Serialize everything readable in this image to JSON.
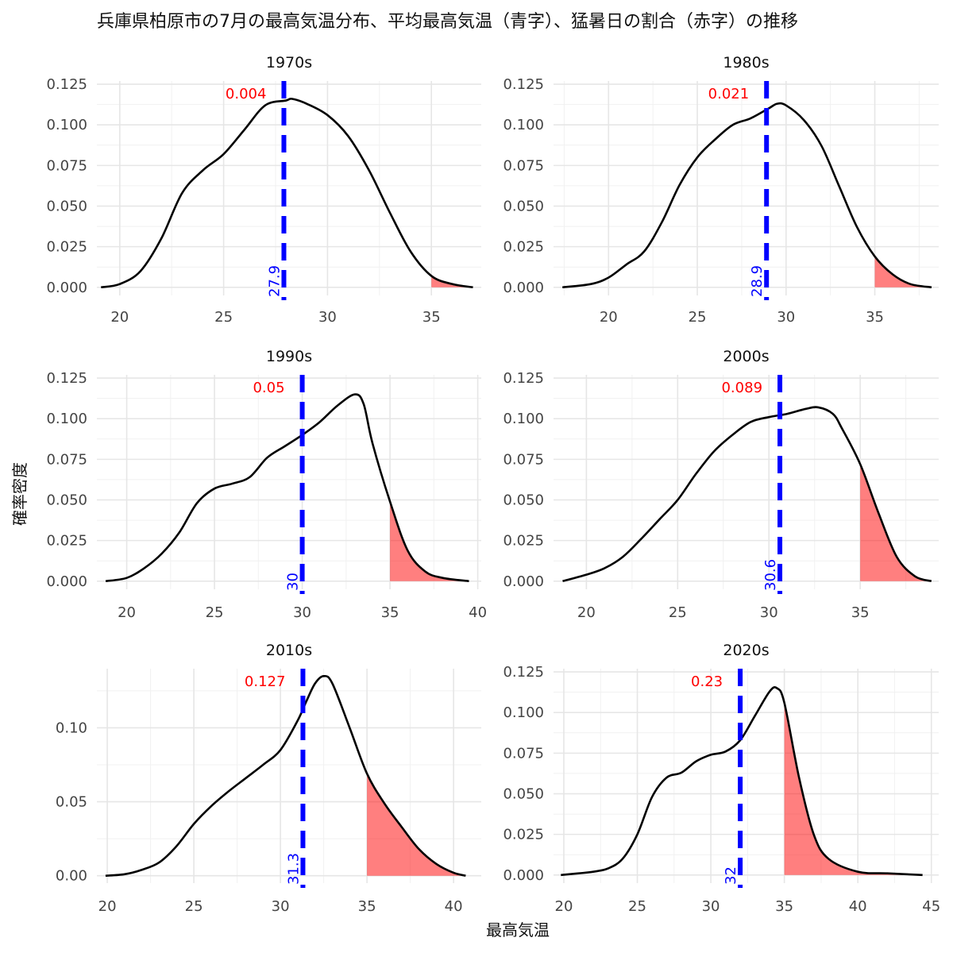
{
  "chart_data": {
    "type": "area",
    "title": "兵庫県柏原市の7月の最高気温分布、平均最高気温（青字）、猛暑日の割合（赤字）の推移",
    "xlabel": "最高気温",
    "ylabel": "確率密度",
    "threshold": 35,
    "colors": {
      "mean_line": "#0000ff",
      "share_text": "#ff0000",
      "tail_fill": "#ff0000",
      "curve": "#000000"
    },
    "panels": [
      {
        "label": "1970s",
        "mean": 27.9,
        "mean_label": "27.9",
        "share_label": "0.004",
        "xlim": [
          18.9,
          37.4
        ],
        "ylim": [
          -0.005,
          0.127
        ],
        "xticks": [
          20,
          25,
          30,
          35
        ],
        "yticks": [
          0,
          0.025,
          0.05,
          0.075,
          0.1,
          0.125
        ],
        "ytick_labels": [
          "0.000",
          "0.025",
          "0.050",
          "0.075",
          "0.100",
          "0.125"
        ],
        "x": [
          19.1,
          20.0,
          21.0,
          22.0,
          23.0,
          24.0,
          25.0,
          26.0,
          27.0,
          28.0,
          28.3,
          29.0,
          30.0,
          31.0,
          32.0,
          33.0,
          34.0,
          35.0,
          36.0,
          37.0
        ],
        "y": [
          0.0,
          0.002,
          0.01,
          0.03,
          0.058,
          0.072,
          0.082,
          0.097,
          0.112,
          0.115,
          0.116,
          0.113,
          0.106,
          0.093,
          0.072,
          0.046,
          0.022,
          0.007,
          0.002,
          0.0
        ]
      },
      {
        "label": "1980s",
        "mean": 28.9,
        "mean_label": "28.9",
        "share_label": "0.021",
        "xlim": [
          16.9,
          38.6
        ],
        "ylim": [
          -0.005,
          0.127
        ],
        "xticks": [
          20,
          25,
          30,
          35
        ],
        "yticks": [
          0,
          0.025,
          0.05,
          0.075,
          0.1,
          0.125
        ],
        "ytick_labels": [
          "0.000",
          "0.025",
          "0.050",
          "0.075",
          "0.100",
          "0.125"
        ],
        "x": [
          17.4,
          19.0,
          20.0,
          21.0,
          22.0,
          23.0,
          24.0,
          25.0,
          26.0,
          27.0,
          28.0,
          29.0,
          29.5,
          30.0,
          31.0,
          32.0,
          33.0,
          34.0,
          35.0,
          36.0,
          37.0,
          38.2
        ],
        "y": [
          0.0,
          0.002,
          0.006,
          0.014,
          0.022,
          0.04,
          0.063,
          0.08,
          0.091,
          0.1,
          0.104,
          0.11,
          0.113,
          0.112,
          0.103,
          0.087,
          0.062,
          0.037,
          0.019,
          0.008,
          0.002,
          0.0
        ]
      },
      {
        "label": "1990s",
        "mean": 30,
        "mean_label": "30",
        "share_label": "0.05",
        "xlim": [
          18.3,
          40.2
        ],
        "ylim": [
          -0.005,
          0.127
        ],
        "xticks": [
          20,
          25,
          30,
          35,
          40
        ],
        "yticks": [
          0,
          0.025,
          0.05,
          0.075,
          0.1,
          0.125
        ],
        "ytick_labels": [
          "0.000",
          "0.025",
          "0.050",
          "0.075",
          "0.100",
          "0.125"
        ],
        "x": [
          18.8,
          20.0,
          21.0,
          22.0,
          23.0,
          24.0,
          25.0,
          26.0,
          27.0,
          28.0,
          29.0,
          30.0,
          31.0,
          32.0,
          33.0,
          33.5,
          34.0,
          35.0,
          36.0,
          37.0,
          38.0,
          39.5
        ],
        "y": [
          0.0,
          0.002,
          0.008,
          0.017,
          0.03,
          0.048,
          0.057,
          0.06,
          0.064,
          0.076,
          0.083,
          0.09,
          0.098,
          0.108,
          0.115,
          0.109,
          0.085,
          0.049,
          0.019,
          0.006,
          0.002,
          0.0
        ]
      },
      {
        "label": "2000s",
        "mean": 30.6,
        "mean_label": "30.6",
        "share_label": "0.089",
        "xlim": [
          18.2,
          39.3
        ],
        "ylim": [
          -0.005,
          0.127
        ],
        "xticks": [
          20,
          25,
          30,
          35
        ],
        "yticks": [
          0,
          0.025,
          0.05,
          0.075,
          0.1,
          0.125
        ],
        "ytick_labels": [
          "0.000",
          "0.025",
          "0.050",
          "0.075",
          "0.100",
          "0.125"
        ],
        "x": [
          18.7,
          20.0,
          21.0,
          22.0,
          23.0,
          24.0,
          25.0,
          26.0,
          27.0,
          28.0,
          29.0,
          30.0,
          31.0,
          32.0,
          32.7,
          33.5,
          34.0,
          35.0,
          36.0,
          37.0,
          38.0,
          38.9
        ],
        "y": [
          0.0,
          0.004,
          0.008,
          0.015,
          0.026,
          0.038,
          0.05,
          0.066,
          0.08,
          0.09,
          0.098,
          0.101,
          0.103,
          0.106,
          0.107,
          0.103,
          0.094,
          0.072,
          0.042,
          0.015,
          0.003,
          0.0
        ]
      },
      {
        "label": "2010s",
        "mean": 31.3,
        "mean_label": "31.3",
        "share_label": "0.127",
        "xlim": [
          19.4,
          41.6
        ],
        "ylim": [
          -0.005,
          0.14
        ],
        "xticks": [
          20,
          25,
          30,
          35,
          40
        ],
        "yticks": [
          0,
          0.05,
          0.1
        ],
        "ytick_labels": [
          "0.00",
          "0.05",
          "0.10"
        ],
        "x": [
          19.9,
          21.0,
          22.0,
          23.0,
          24.0,
          25.0,
          26.0,
          27.0,
          28.0,
          29.0,
          30.0,
          31.0,
          31.5,
          32.0,
          32.5,
          33.0,
          34.0,
          35.0,
          36.0,
          37.0,
          38.0,
          39.0,
          40.0,
          40.7
        ],
        "y": [
          0.0,
          0.001,
          0.004,
          0.009,
          0.02,
          0.035,
          0.047,
          0.057,
          0.066,
          0.075,
          0.085,
          0.105,
          0.118,
          0.13,
          0.135,
          0.13,
          0.1,
          0.069,
          0.049,
          0.033,
          0.018,
          0.008,
          0.002,
          0.0
        ]
      },
      {
        "label": "2020s",
        "mean": 32,
        "mean_label": "32",
        "share_label": "0.23",
        "xlim": [
          19.3,
          45.5
        ],
        "ylim": [
          -0.005,
          0.127
        ],
        "xticks": [
          20,
          25,
          30,
          35,
          40,
          45
        ],
        "yticks": [
          0,
          0.025,
          0.05,
          0.075,
          0.1,
          0.125
        ],
        "ytick_labels": [
          "0.000",
          "0.025",
          "0.050",
          "0.075",
          "0.100",
          "0.125"
        ],
        "x": [
          19.8,
          21.0,
          22.0,
          23.0,
          24.0,
          25.0,
          26.0,
          27.0,
          28.0,
          29.0,
          30.0,
          31.0,
          32.0,
          33.0,
          34.0,
          34.5,
          35.0,
          36.0,
          37.0,
          38.0,
          40.0,
          42.0,
          44.4
        ],
        "y": [
          0.0,
          0.001,
          0.002,
          0.004,
          0.01,
          0.025,
          0.048,
          0.06,
          0.063,
          0.07,
          0.074,
          0.076,
          0.083,
          0.098,
          0.113,
          0.115,
          0.106,
          0.06,
          0.025,
          0.01,
          0.002,
          0.001,
          0.0
        ]
      }
    ]
  }
}
